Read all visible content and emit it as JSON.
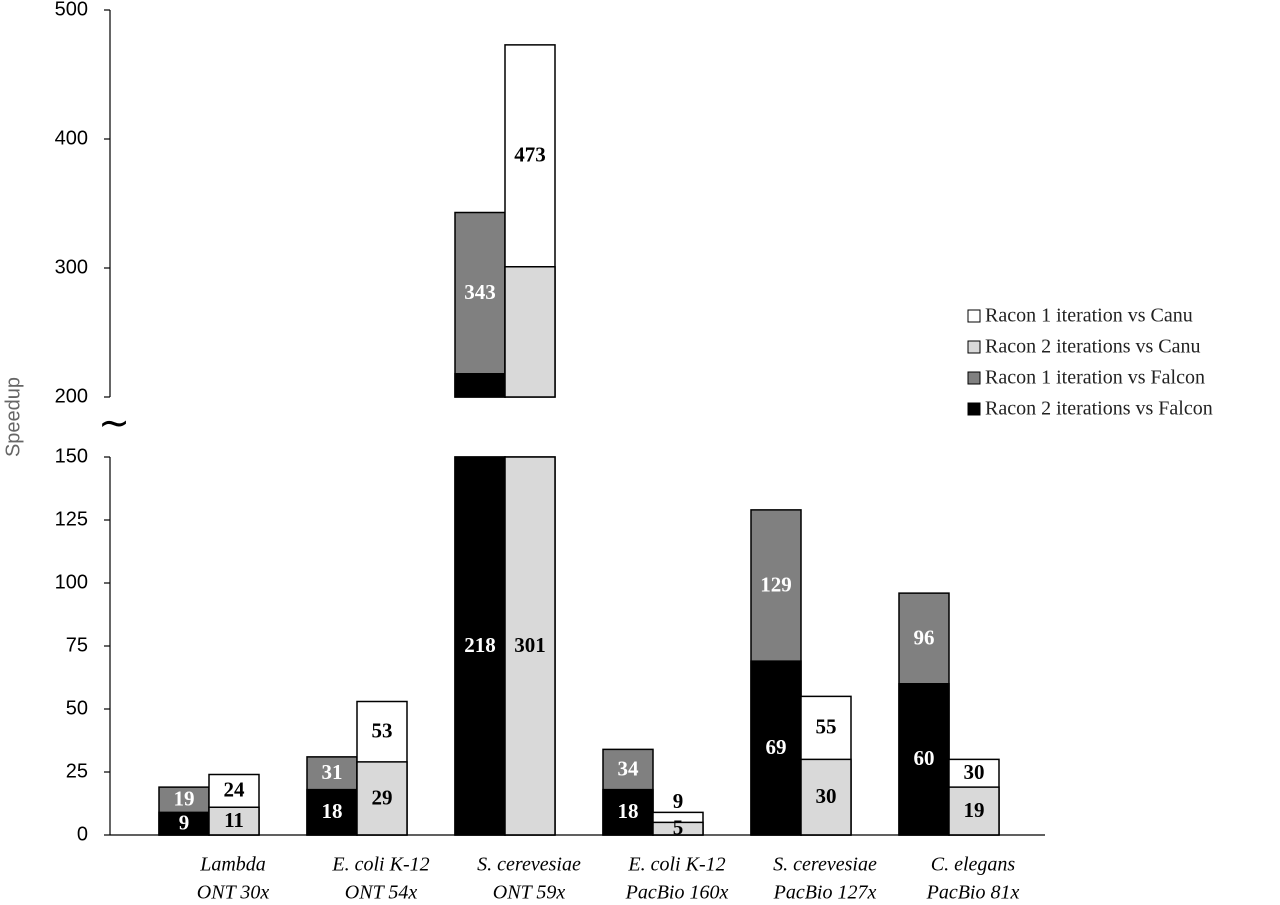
{
  "chart_data": {
    "type": "bar",
    "y_label": "Speedup",
    "categories": [
      [
        "Lambda",
        "ONT 30x"
      ],
      [
        "E. coli K-12",
        "ONT 54x"
      ],
      [
        "S. cerevesiae",
        "ONT 59x"
      ],
      [
        "E. coli K-12",
        "PacBio 160x"
      ],
      [
        "S. cerevesiae",
        "PacBio 127x"
      ],
      [
        "C. elegans",
        "PacBio 81x"
      ]
    ],
    "series": [
      {
        "name": "Racon 1 iteration vs Canu",
        "color": "#ffffff",
        "values": [
          24,
          53,
          473,
          9,
          55,
          30
        ]
      },
      {
        "name": "Racon 2 iterations vs Canu",
        "color": "#d9d9d9",
        "values": [
          11,
          29,
          301,
          5,
          30,
          19
        ]
      },
      {
        "name": "Racon 1 iteration vs Falcon",
        "color": "#808080",
        "values": [
          19,
          31,
          343,
          34,
          129,
          96
        ]
      },
      {
        "name": "Racon 2 iterations vs Falcon",
        "color": "#000000",
        "values": [
          9,
          18,
          218,
          18,
          69,
          60
        ]
      }
    ],
    "ylim": [
      0,
      500
    ],
    "axis_break": [
      150,
      200
    ],
    "yticks": [
      0,
      25,
      50,
      75,
      100,
      125,
      150,
      200,
      300,
      400,
      500
    ],
    "legend": "right"
  }
}
